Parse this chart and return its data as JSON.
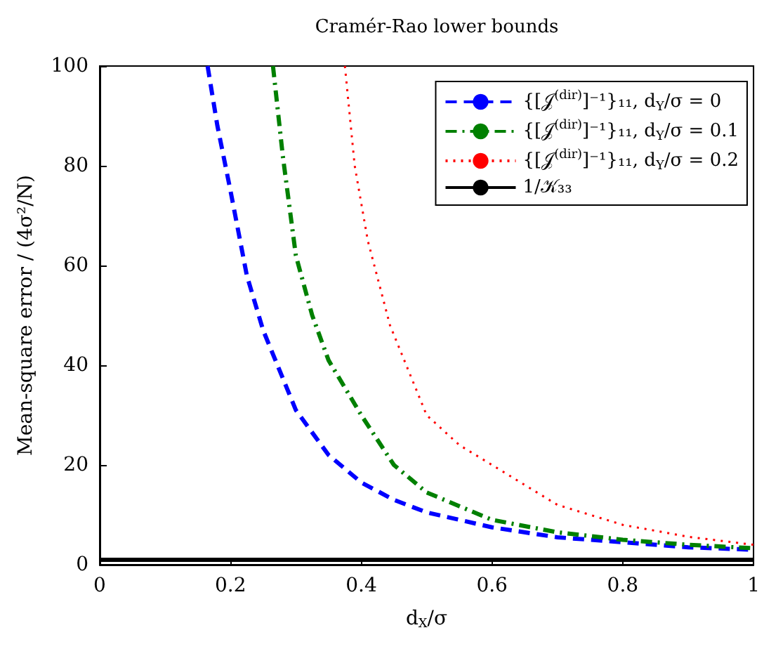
{
  "chart_data": {
    "type": "line",
    "title": "Cramér-Rao lower bounds",
    "xlabel": "d$_{X}$/σ",
    "ylabel": "Mean-square error / (4σ²/N)",
    "xlim": [
      0,
      1
    ],
    "xticks": [
      0,
      0.2,
      0.4,
      0.6,
      0.8,
      1
    ],
    "ylim": [
      0,
      100
    ],
    "yticks": [
      0,
      20,
      40,
      60,
      80,
      100
    ],
    "grid": false,
    "legend": "top right",
    "marker": "none",
    "series": [
      {
        "name": "{[𝒥$^{(dir)}$]⁻¹}₁₁, d$_{Y}$/σ = 0",
        "color": "#0000ff",
        "line_style": "dashed",
        "x": [
          0.165,
          0.18,
          0.2,
          0.225,
          0.25,
          0.3,
          0.35,
          0.4,
          0.45,
          0.5,
          0.6,
          0.7,
          0.8,
          0.9,
          1.0
        ],
        "values": [
          100,
          88,
          75,
          58,
          47,
          31,
          22,
          16.5,
          13,
          10.5,
          7.5,
          5.5,
          4.5,
          3.5,
          3
        ]
      },
      {
        "name": "{[𝒥$^{(dir)}$]⁻¹}₁₁, d$_{Y}$/σ = 0.1",
        "color": "#008000",
        "line_style": "dashdot",
        "x": [
          0.265,
          0.28,
          0.3,
          0.325,
          0.35,
          0.4,
          0.45,
          0.5,
          0.6,
          0.7,
          0.8,
          0.9,
          1.0
        ],
        "values": [
          100,
          82,
          62,
          50,
          41,
          30,
          20,
          14.5,
          9,
          6.5,
          5,
          4,
          3.3
        ]
      },
      {
        "name": "{[𝒥$^{(dir)}$]⁻¹}₁₁, d$_{Y}$/σ = 0.2",
        "color": "#ff0000",
        "line_style": "dotted",
        "x": [
          0.375,
          0.39,
          0.41,
          0.444,
          0.5,
          0.55,
          0.6,
          0.7,
          0.8,
          0.9,
          1.0
        ],
        "values": [
          100,
          80,
          65,
          48,
          30,
          24,
          20,
          12,
          8,
          5.6,
          4
        ]
      },
      {
        "name": "1/𝒦₃₃",
        "color": "#000000",
        "line_style": "solid",
        "x": [
          0,
          1
        ],
        "values": [
          1,
          1
        ]
      }
    ]
  }
}
